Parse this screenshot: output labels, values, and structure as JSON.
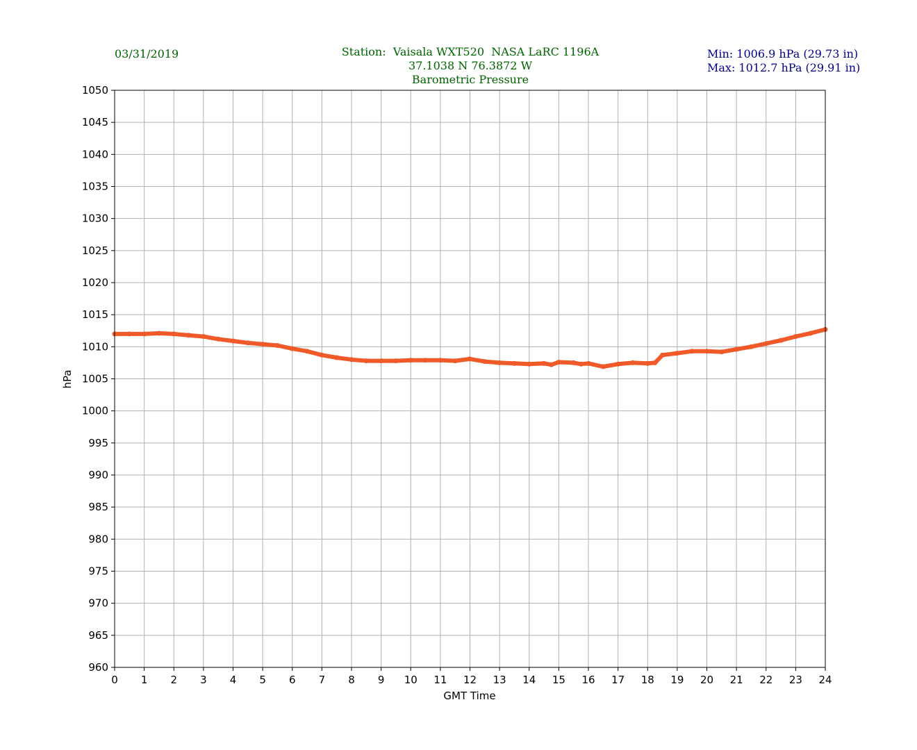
{
  "header": {
    "date": "03/31/2019",
    "station_line": "Station:  Vaisala WXT520  NASA LaRC 1196A",
    "coords_line": "37.1038 N 76.3872 W",
    "title": "Barometric Pressure",
    "min_text": "Min: 1006.9 hPa (29.73 in)",
    "max_text": "Max: 1012.7 hPa (29.91 in)"
  },
  "colors": {
    "line": "#f05a28",
    "header_green": "#006400",
    "header_blue": "#00008b",
    "grid": "#b0b0b0"
  },
  "chart_data": {
    "type": "line",
    "title": "Barometric Pressure",
    "xlabel": "GMT Time",
    "ylabel": "hPa",
    "xlim": [
      0,
      24
    ],
    "ylim": [
      960,
      1050
    ],
    "xticks": [
      0,
      1,
      2,
      3,
      4,
      5,
      6,
      7,
      8,
      9,
      10,
      11,
      12,
      13,
      14,
      15,
      16,
      17,
      18,
      19,
      20,
      21,
      22,
      23,
      24
    ],
    "yticks": [
      960,
      965,
      970,
      975,
      980,
      985,
      990,
      995,
      1000,
      1005,
      1010,
      1015,
      1020,
      1025,
      1030,
      1035,
      1040,
      1045,
      1050
    ],
    "grid": true,
    "series": [
      {
        "name": "Pressure",
        "x": [
          0,
          0.5,
          1,
          1.5,
          2,
          2.5,
          3,
          3.5,
          4,
          4.5,
          5,
          5.5,
          6,
          6.5,
          7,
          7.5,
          8,
          8.5,
          9,
          9.5,
          10,
          10.5,
          11,
          11.5,
          12,
          12.5,
          13,
          13.5,
          14,
          14.5,
          14.75,
          15,
          15.5,
          15.75,
          16,
          16.5,
          17,
          17.5,
          18,
          18.25,
          18.5,
          19,
          19.5,
          20,
          20.5,
          21,
          21.5,
          22,
          22.5,
          23,
          23.5,
          24
        ],
        "y": [
          1012.0,
          1012.0,
          1012.0,
          1012.1,
          1012.0,
          1011.8,
          1011.6,
          1011.2,
          1010.9,
          1010.6,
          1010.4,
          1010.2,
          1009.7,
          1009.3,
          1008.7,
          1008.3,
          1008.0,
          1007.8,
          1007.8,
          1007.8,
          1007.9,
          1007.9,
          1007.9,
          1007.8,
          1008.1,
          1007.7,
          1007.5,
          1007.4,
          1007.3,
          1007.4,
          1007.2,
          1007.6,
          1007.5,
          1007.3,
          1007.4,
          1006.9,
          1007.3,
          1007.5,
          1007.4,
          1007.5,
          1008.7,
          1009.0,
          1009.3,
          1009.3,
          1009.2,
          1009.6,
          1010.0,
          1010.5,
          1011.0,
          1011.6,
          1012.1,
          1012.7
        ]
      }
    ]
  }
}
